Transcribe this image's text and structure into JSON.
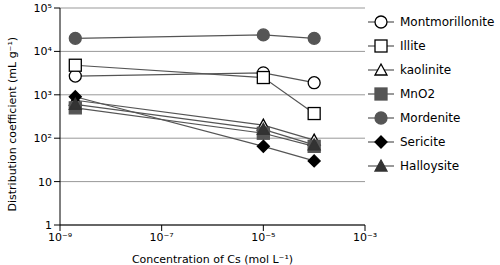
{
  "chart_data": {
    "type": "line",
    "x_label": "Concentration of Cs (mol L⁻¹)",
    "y_label": "Distribution coefficient (mL g⁻¹)",
    "x": [
      2e-09,
      1e-05,
      0.0001
    ],
    "xlim": [
      1e-09,
      0.001
    ],
    "xticks": [
      {
        "value": 1e-09,
        "label": "10⁻⁹"
      },
      {
        "value": 1e-07,
        "label": "10⁻⁷"
      },
      {
        "value": 1e-05,
        "label": "10⁻⁵"
      },
      {
        "value": 0.001,
        "label": "10⁻³"
      }
    ],
    "ylim": [
      1,
      100000
    ],
    "yticks": [
      1,
      10,
      {
        "value": 100,
        "label": "10²"
      },
      {
        "value": 1000,
        "label": "10³"
      },
      {
        "value": 10000,
        "label": "10⁴"
      },
      {
        "value": 100000,
        "label": "10⁵"
      }
    ],
    "log": true,
    "grid": true,
    "legend": "right",
    "series": [
      {
        "name": "Montmorillonite",
        "color": "#000000",
        "marker": "circle_open",
        "values": [
          2700,
          3200,
          1900
        ]
      },
      {
        "name": "Illite",
        "color": "#000000",
        "marker": "square_open",
        "values": [
          4800,
          2500,
          370
        ]
      },
      {
        "name": "kaolinite",
        "color": "#000000",
        "marker": "triangle_open",
        "values": [
          750,
          200,
          90
        ]
      },
      {
        "name": "MnO2",
        "color": "#555555",
        "marker": "square",
        "values": [
          500,
          130,
          65
        ]
      },
      {
        "name": "Mordenite",
        "color": "#555555",
        "marker": "circle",
        "values": [
          20000,
          24000,
          20000
        ]
      },
      {
        "name": "Sericite",
        "color": "#000000",
        "marker": "diamond",
        "values": [
          900,
          65,
          30
        ]
      },
      {
        "name": "Halloysite",
        "color": "#333333",
        "marker": "triangle",
        "values": [
          600,
          160,
          70
        ]
      }
    ]
  }
}
